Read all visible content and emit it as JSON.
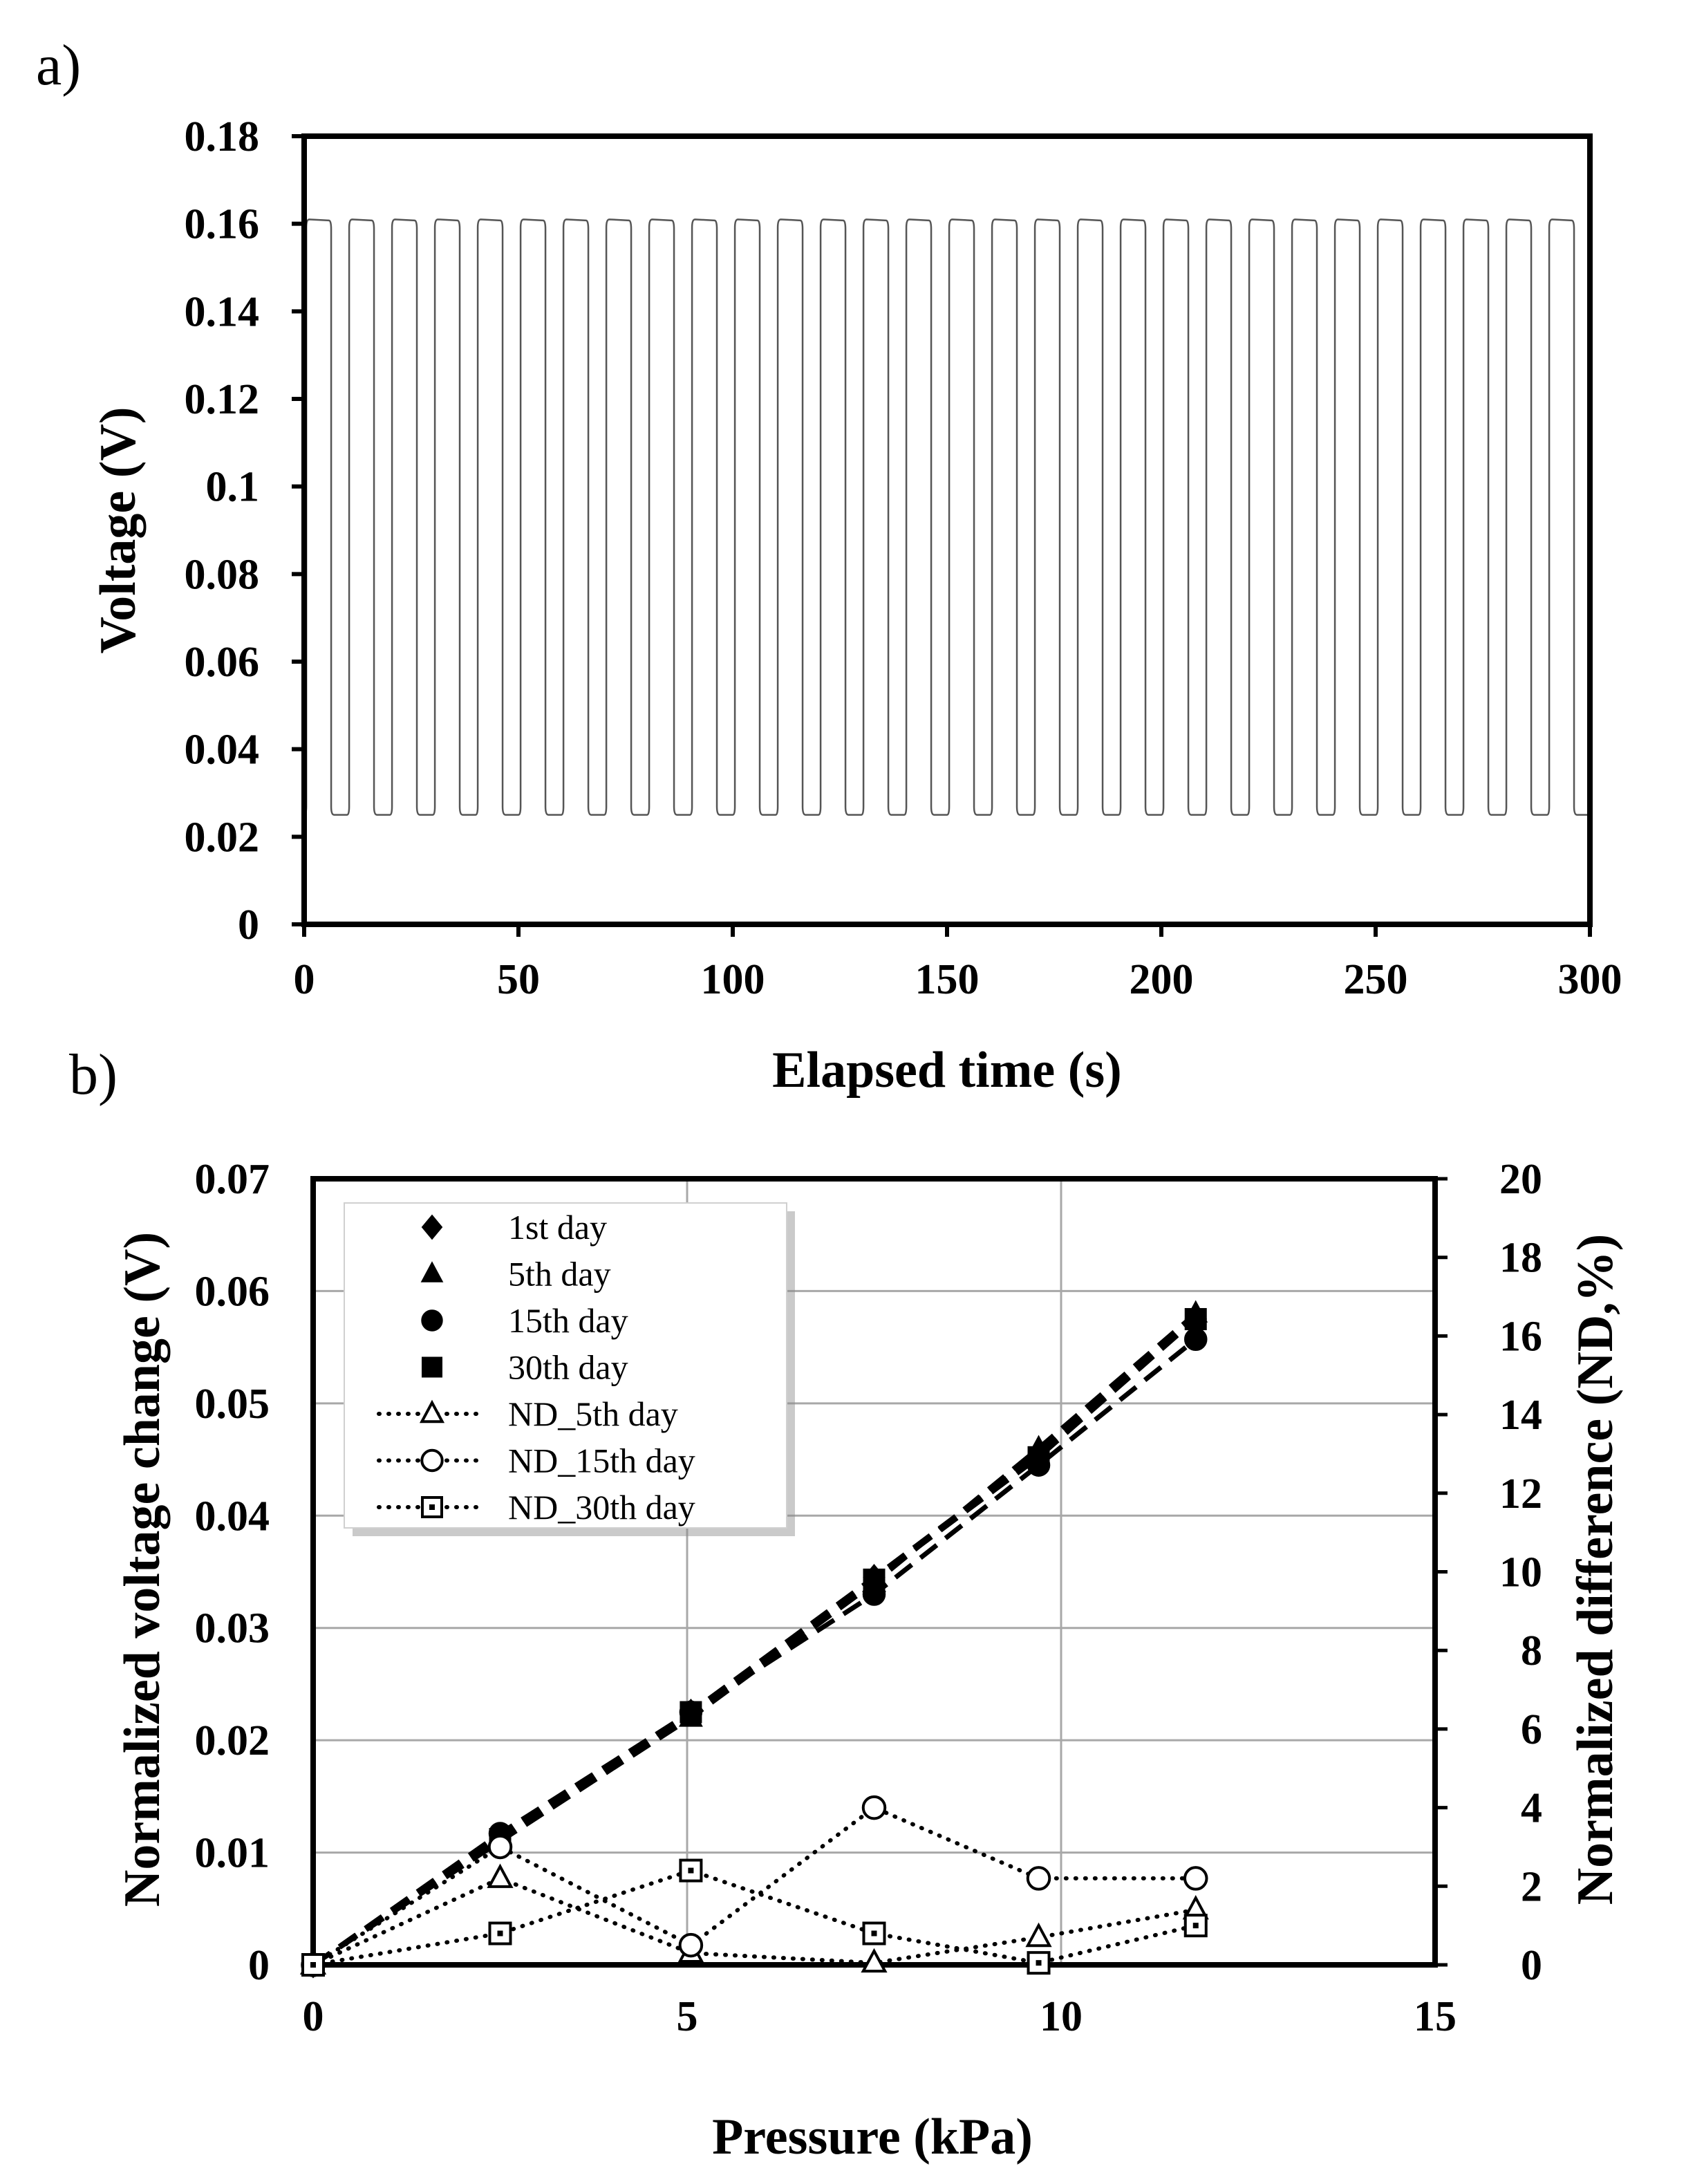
{
  "chart_data": [
    {
      "panel": "a)",
      "type": "line",
      "xlabel": "Elapsed time (s)",
      "ylabel": "Voltage (V)",
      "xlim": [
        0,
        300
      ],
      "ylim": [
        0,
        0.18
      ],
      "xticks": [
        "0",
        "50",
        "100",
        "150",
        "200",
        "250",
        "300"
      ],
      "yticks": [
        "0",
        "0.02",
        "0.04",
        "0.06",
        "0.08",
        "0.1",
        "0.12",
        "0.14",
        "0.16",
        "0.18"
      ],
      "grid": false,
      "series": [
        {
          "name": "Voltage",
          "color": "#555555",
          "waveform": "square",
          "period_s": 10,
          "high_V": 0.161,
          "low_V": 0.025,
          "cycles": 30
        }
      ]
    },
    {
      "panel": "b)",
      "type": "scatter",
      "xlabel": "Pressure (kPa)",
      "ylabel": "Normalized voltage change (V)",
      "y2label": "Normalized difference (ND,%)",
      "xlim": [
        0,
        15
      ],
      "ylim": [
        0,
        0.07
      ],
      "y2lim": [
        0,
        20
      ],
      "xticks": [
        "0",
        "5",
        "10",
        "15"
      ],
      "yticks": [
        "0",
        "0.01",
        "0.02",
        "0.03",
        "0.04",
        "0.05",
        "0.06",
        "0.07"
      ],
      "y2ticks": [
        "0",
        "2",
        "4",
        "6",
        "8",
        "10",
        "12",
        "14",
        "16",
        "18",
        "20"
      ],
      "grid": true,
      "legend_position": "top-left",
      "x": [
        0,
        2.5,
        5.05,
        7.5,
        9.7,
        11.8
      ],
      "series": [
        {
          "name": "1st day",
          "axis": "left",
          "marker": "diamond-filled",
          "line": "dashed",
          "values": [
            0,
            0.0115,
            0.0225,
            0.0345,
            0.0455,
            0.0575
          ]
        },
        {
          "name": "5th day",
          "axis": "left",
          "marker": "triangle-filled",
          "line": "dashed",
          "values": [
            0,
            0.011,
            0.022,
            0.034,
            0.046,
            0.058
          ]
        },
        {
          "name": "15th day",
          "axis": "left",
          "marker": "circle-filled",
          "line": "dashed",
          "values": [
            0,
            0.0117,
            0.0225,
            0.033,
            0.0445,
            0.0557
          ]
        },
        {
          "name": "30th day",
          "axis": "left",
          "marker": "square-filled",
          "line": "dashed",
          "values": [
            0,
            0.0112,
            0.0225,
            0.0343,
            0.0452,
            0.0575
          ]
        },
        {
          "name": "ND_5th day",
          "axis": "right",
          "marker": "triangle-open",
          "line": "dotted",
          "values": [
            0,
            2.2,
            0.3,
            0.05,
            0.7,
            1.4
          ]
        },
        {
          "name": "ND_15th day",
          "axis": "right",
          "marker": "circle-open",
          "line": "dotted",
          "values": [
            0,
            3.0,
            0.5,
            4.0,
            2.2,
            2.2
          ]
        },
        {
          "name": "ND_30th day",
          "axis": "right",
          "marker": "square-open",
          "line": "dotted",
          "values": [
            0,
            0.8,
            2.4,
            0.8,
            0.05,
            1.0
          ]
        }
      ]
    }
  ]
}
